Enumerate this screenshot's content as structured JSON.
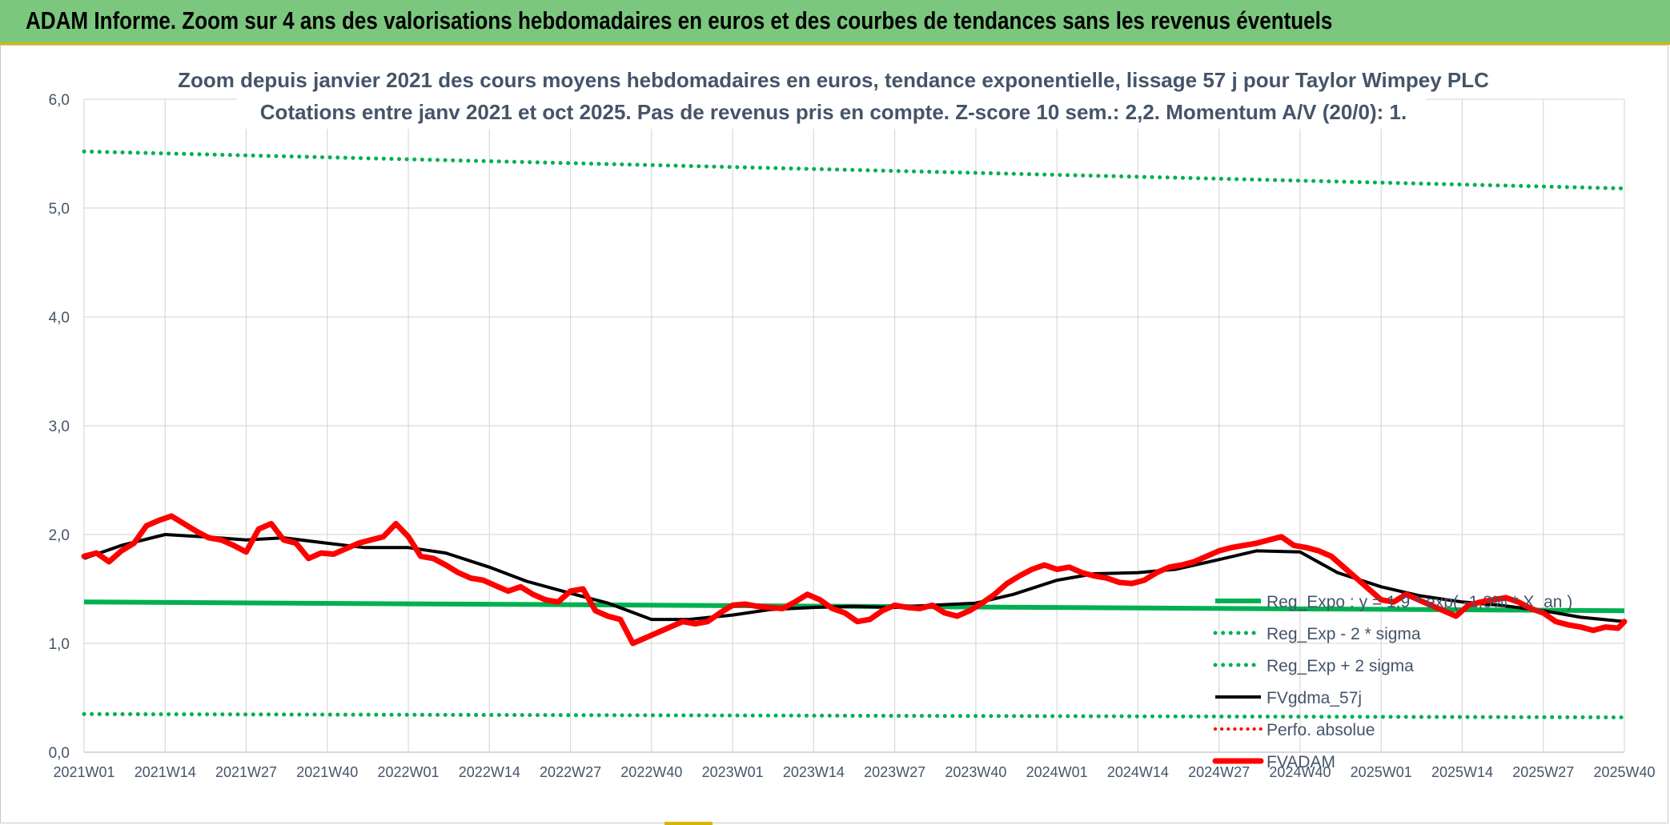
{
  "banner": {
    "title": "ADAM Informe. Zoom sur 4 ans des valorisations hebdomadaires en euros et des courbes de tendances sans les revenus éventuels"
  },
  "chart_data": {
    "type": "line",
    "title": "Zoom depuis janvier 2021 des cours moyens hebdomadaires en euros, tendance exponentielle, lissage 57 j pour Taylor Wimpey PLC",
    "subtitle": "Cotations entre janv 2021 et oct 2025. Pas de revenus pris en compte. Z-score 10 sem.: 2,2. Momentum A/V (20/0): 1.",
    "ylim": [
      0,
      6
    ],
    "yticks": [
      "0,0",
      "1,0",
      "2,0",
      "3,0",
      "4,0",
      "5,0",
      "6,0"
    ],
    "x_labels": [
      "2021W01",
      "2021W14",
      "2021W27",
      "2021W40",
      "2022W01",
      "2022W14",
      "2022W27",
      "2022W40",
      "2023W01",
      "2023W14",
      "2023W27",
      "2023W40",
      "2024W01",
      "2024W14",
      "2024W27",
      "2024W40",
      "2025W01",
      "2025W14",
      "2025W27",
      "2025W40"
    ],
    "grid": true,
    "legend_position": "right",
    "colors": {
      "trend": "#00b050",
      "smooth": "#000000",
      "fvadam": "#ff0000",
      "perf": "#ff0000"
    },
    "series": [
      {
        "name": "Reg_Expo : y = 1,9 * exp( -1,3% *  X_an )",
        "style": "solid-green",
        "x": [
          "2021W01",
          "2025W40"
        ],
        "values": [
          1.38,
          1.3
        ]
      },
      {
        "name": "Reg_Exp - 2 * sigma",
        "style": "dotted-green",
        "x": [
          "2021W01",
          "2025W40"
        ],
        "values": [
          0.35,
          0.32
        ]
      },
      {
        "name": "Reg_Exp + 2 sigma",
        "style": "dotted-green",
        "x": [
          "2021W01",
          "2025W40"
        ],
        "values": [
          5.52,
          5.18
        ]
      },
      {
        "name": "FVgdma_57j",
        "style": "solid-black",
        "x": [
          "2021W01",
          "2021W07",
          "2021W14",
          "2021W20",
          "2021W27",
          "2021W33",
          "2021W40",
          "2021W46",
          "2022W01",
          "2022W07",
          "2022W14",
          "2022W20",
          "2022W27",
          "2022W33",
          "2022W40",
          "2022W46",
          "2023W01",
          "2023W07",
          "2023W14",
          "2023W20",
          "2023W27",
          "2023W33",
          "2023W40",
          "2023W46",
          "2024W01",
          "2024W07",
          "2024W14",
          "2024W20",
          "2024W27",
          "2024W33",
          "2024W40",
          "2024W46",
          "2025W01",
          "2025W07",
          "2025W14",
          "2025W20",
          "2025W27",
          "2025W33",
          "2025W40"
        ],
        "values": [
          1.78,
          1.9,
          2.0,
          1.98,
          1.95,
          1.97,
          1.92,
          1.88,
          1.88,
          1.83,
          1.7,
          1.57,
          1.46,
          1.37,
          1.22,
          1.22,
          1.26,
          1.31,
          1.33,
          1.34,
          1.33,
          1.35,
          1.37,
          1.45,
          1.58,
          1.64,
          1.65,
          1.68,
          1.77,
          1.85,
          1.84,
          1.65,
          1.52,
          1.44,
          1.38,
          1.35,
          1.3,
          1.24,
          1.2
        ]
      },
      {
        "name": "Perfo. absolue",
        "style": "dotted-red",
        "x": [],
        "values": []
      },
      {
        "name": "FVADAM",
        "style": "thick-red",
        "x": [
          "2021W01",
          "2021W03",
          "2021W05",
          "2021W07",
          "2021W09",
          "2021W11",
          "2021W13",
          "2021W15",
          "2021W17",
          "2021W19",
          "2021W21",
          "2021W23",
          "2021W25",
          "2021W27",
          "2021W29",
          "2021W31",
          "2021W33",
          "2021W35",
          "2021W37",
          "2021W39",
          "2021W41",
          "2021W43",
          "2021W45",
          "2021W47",
          "2021W49",
          "2021W51",
          "2022W01",
          "2022W03",
          "2022W05",
          "2022W07",
          "2022W09",
          "2022W11",
          "2022W13",
          "2022W15",
          "2022W17",
          "2022W19",
          "2022W21",
          "2022W23",
          "2022W25",
          "2022W27",
          "2022W29",
          "2022W31",
          "2022W33",
          "2022W35",
          "2022W37",
          "2022W39",
          "2022W41",
          "2022W43",
          "2022W45",
          "2022W47",
          "2022W49",
          "2022W51",
          "2023W01",
          "2023W03",
          "2023W05",
          "2023W07",
          "2023W09",
          "2023W11",
          "2023W13",
          "2023W15",
          "2023W17",
          "2023W19",
          "2023W21",
          "2023W23",
          "2023W25",
          "2023W27",
          "2023W29",
          "2023W31",
          "2023W33",
          "2023W35",
          "2023W37",
          "2023W39",
          "2023W41",
          "2023W43",
          "2023W45",
          "2023W47",
          "2023W49",
          "2023W51",
          "2024W01",
          "2024W03",
          "2024W05",
          "2024W07",
          "2024W09",
          "2024W11",
          "2024W13",
          "2024W15",
          "2024W17",
          "2024W19",
          "2024W21",
          "2024W23",
          "2024W25",
          "2024W27",
          "2024W29",
          "2024W31",
          "2024W33",
          "2024W35",
          "2024W37",
          "2024W39",
          "2024W41",
          "2024W43",
          "2024W45",
          "2024W47",
          "2024W49",
          "2024W51",
          "2025W01",
          "2025W03",
          "2025W05",
          "2025W07",
          "2025W09",
          "2025W11",
          "2025W13",
          "2025W15",
          "2025W17",
          "2025W19",
          "2025W21",
          "2025W23",
          "2025W25",
          "2025W27",
          "2025W29",
          "2025W31",
          "2025W33",
          "2025W35",
          "2025W37",
          "2025W39",
          "2025W40"
        ],
        "values": [
          1.8,
          1.83,
          1.75,
          1.85,
          1.92,
          2.08,
          2.13,
          2.17,
          2.1,
          2.03,
          1.97,
          1.95,
          1.9,
          1.84,
          2.05,
          2.1,
          1.95,
          1.92,
          1.78,
          1.83,
          1.82,
          1.87,
          1.92,
          1.95,
          1.98,
          2.1,
          1.98,
          1.8,
          1.78,
          1.72,
          1.65,
          1.6,
          1.58,
          1.53,
          1.48,
          1.52,
          1.45,
          1.4,
          1.38,
          1.48,
          1.5,
          1.3,
          1.25,
          1.22,
          1.0,
          1.05,
          1.1,
          1.15,
          1.2,
          1.18,
          1.2,
          1.28,
          1.35,
          1.36,
          1.34,
          1.33,
          1.32,
          1.38,
          1.45,
          1.4,
          1.32,
          1.28,
          1.2,
          1.22,
          1.3,
          1.35,
          1.33,
          1.32,
          1.35,
          1.28,
          1.25,
          1.3,
          1.37,
          1.45,
          1.55,
          1.62,
          1.68,
          1.72,
          1.68,
          1.7,
          1.65,
          1.62,
          1.6,
          1.56,
          1.55,
          1.58,
          1.65,
          1.7,
          1.72,
          1.75,
          1.8,
          1.85,
          1.88,
          1.9,
          1.92,
          1.95,
          1.98,
          1.9,
          1.88,
          1.85,
          1.8,
          1.7,
          1.6,
          1.5,
          1.4,
          1.38,
          1.45,
          1.4,
          1.35,
          1.3,
          1.25,
          1.35,
          1.38,
          1.4,
          1.42,
          1.38,
          1.32,
          1.28,
          1.2,
          1.17,
          1.15,
          1.12,
          1.15,
          1.14,
          1.2
        ]
      }
    ]
  }
}
